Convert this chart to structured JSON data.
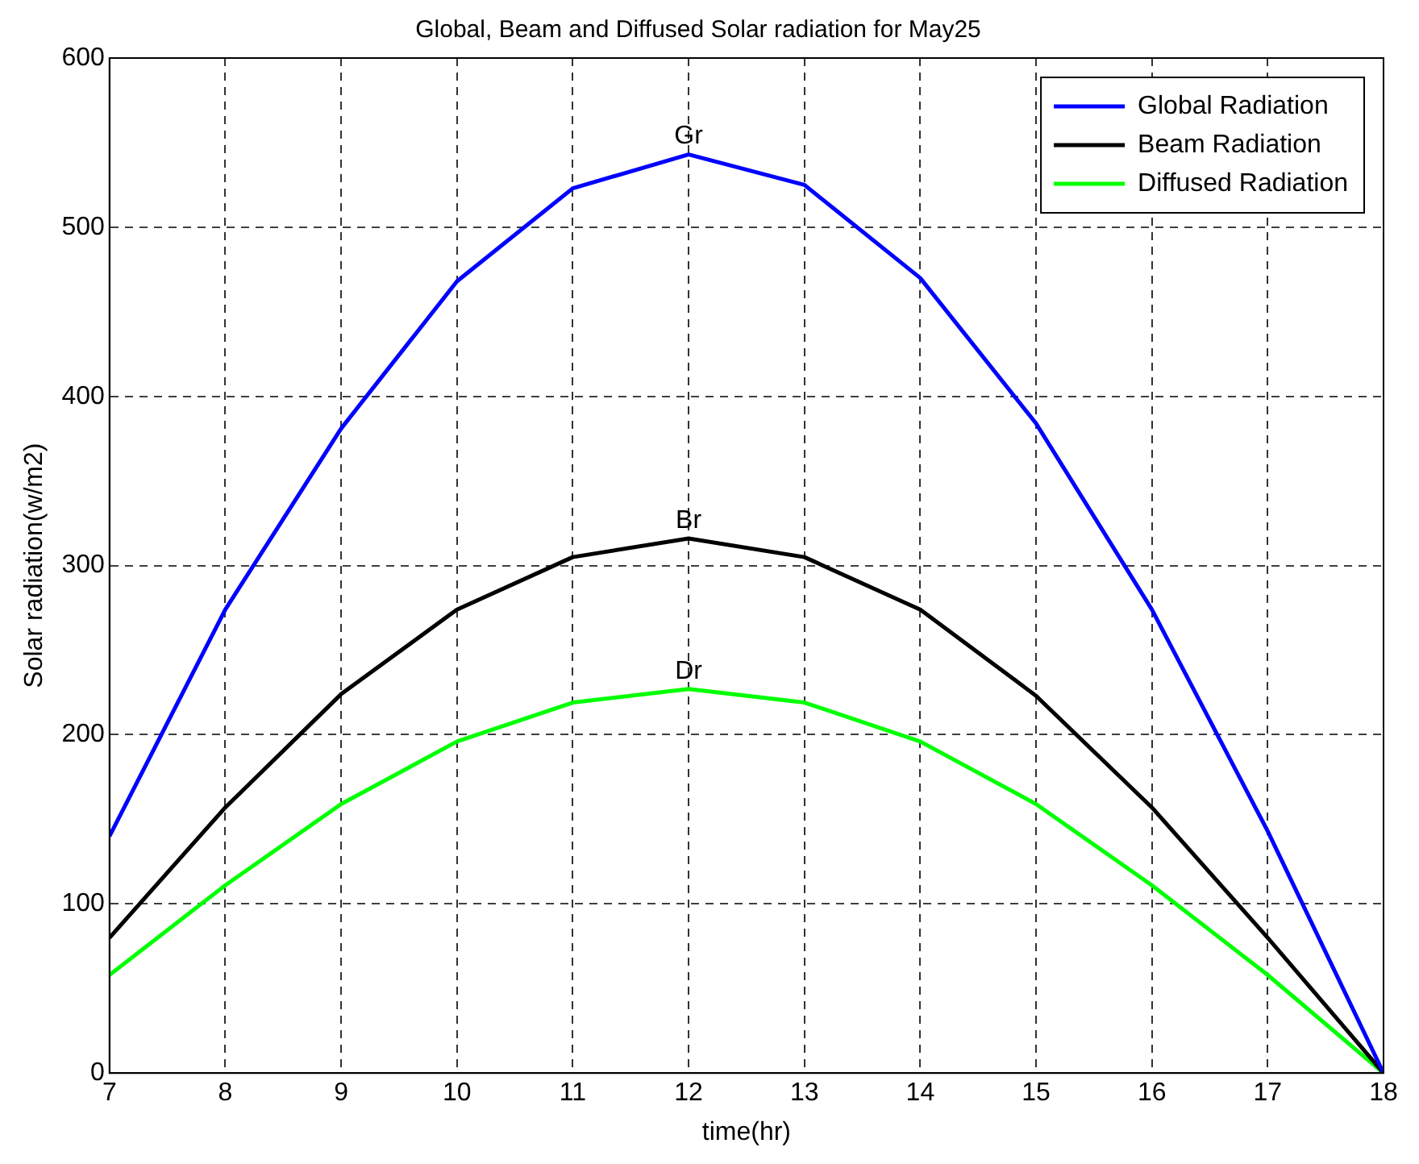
{
  "chart_data": {
    "type": "line",
    "title": "Global, Beam and Diffused Solar radiation for May25",
    "xlabel": "time(hr)",
    "ylabel": "Solar radiation(w/m2)",
    "x": [
      7,
      8,
      9,
      10,
      11,
      12,
      13,
      14,
      15,
      16,
      17,
      18
    ],
    "series": [
      {
        "name": "Global Radiation",
        "color": "#0000ff",
        "values": [
          140,
          274,
          381,
          468,
          523,
          543,
          525,
          470,
          384,
          274,
          143,
          0
        ]
      },
      {
        "name": "Beam Radiation",
        "color": "#000000",
        "values": [
          80,
          157,
          224,
          274,
          305,
          316,
          305,
          274,
          223,
          157,
          80,
          0
        ]
      },
      {
        "name": "Diffused Radiation",
        "color": "#00ff00",
        "values": [
          58,
          111,
          159,
          196,
          219,
          227,
          219,
          196,
          159,
          111,
          58,
          0
        ]
      }
    ],
    "annotations": [
      "Gr",
      "Br",
      "Dr"
    ],
    "xlim": [
      7,
      18
    ],
    "xticks": [
      7,
      8,
      9,
      10,
      11,
      12,
      13,
      14,
      15,
      16,
      17,
      18
    ],
    "ylim": [
      0,
      600
    ],
    "yticks": [
      0,
      100,
      200,
      300,
      400,
      500,
      600
    ],
    "grid": true,
    "legend": "top right",
    "marker": "none",
    "line_style": "solid"
  }
}
